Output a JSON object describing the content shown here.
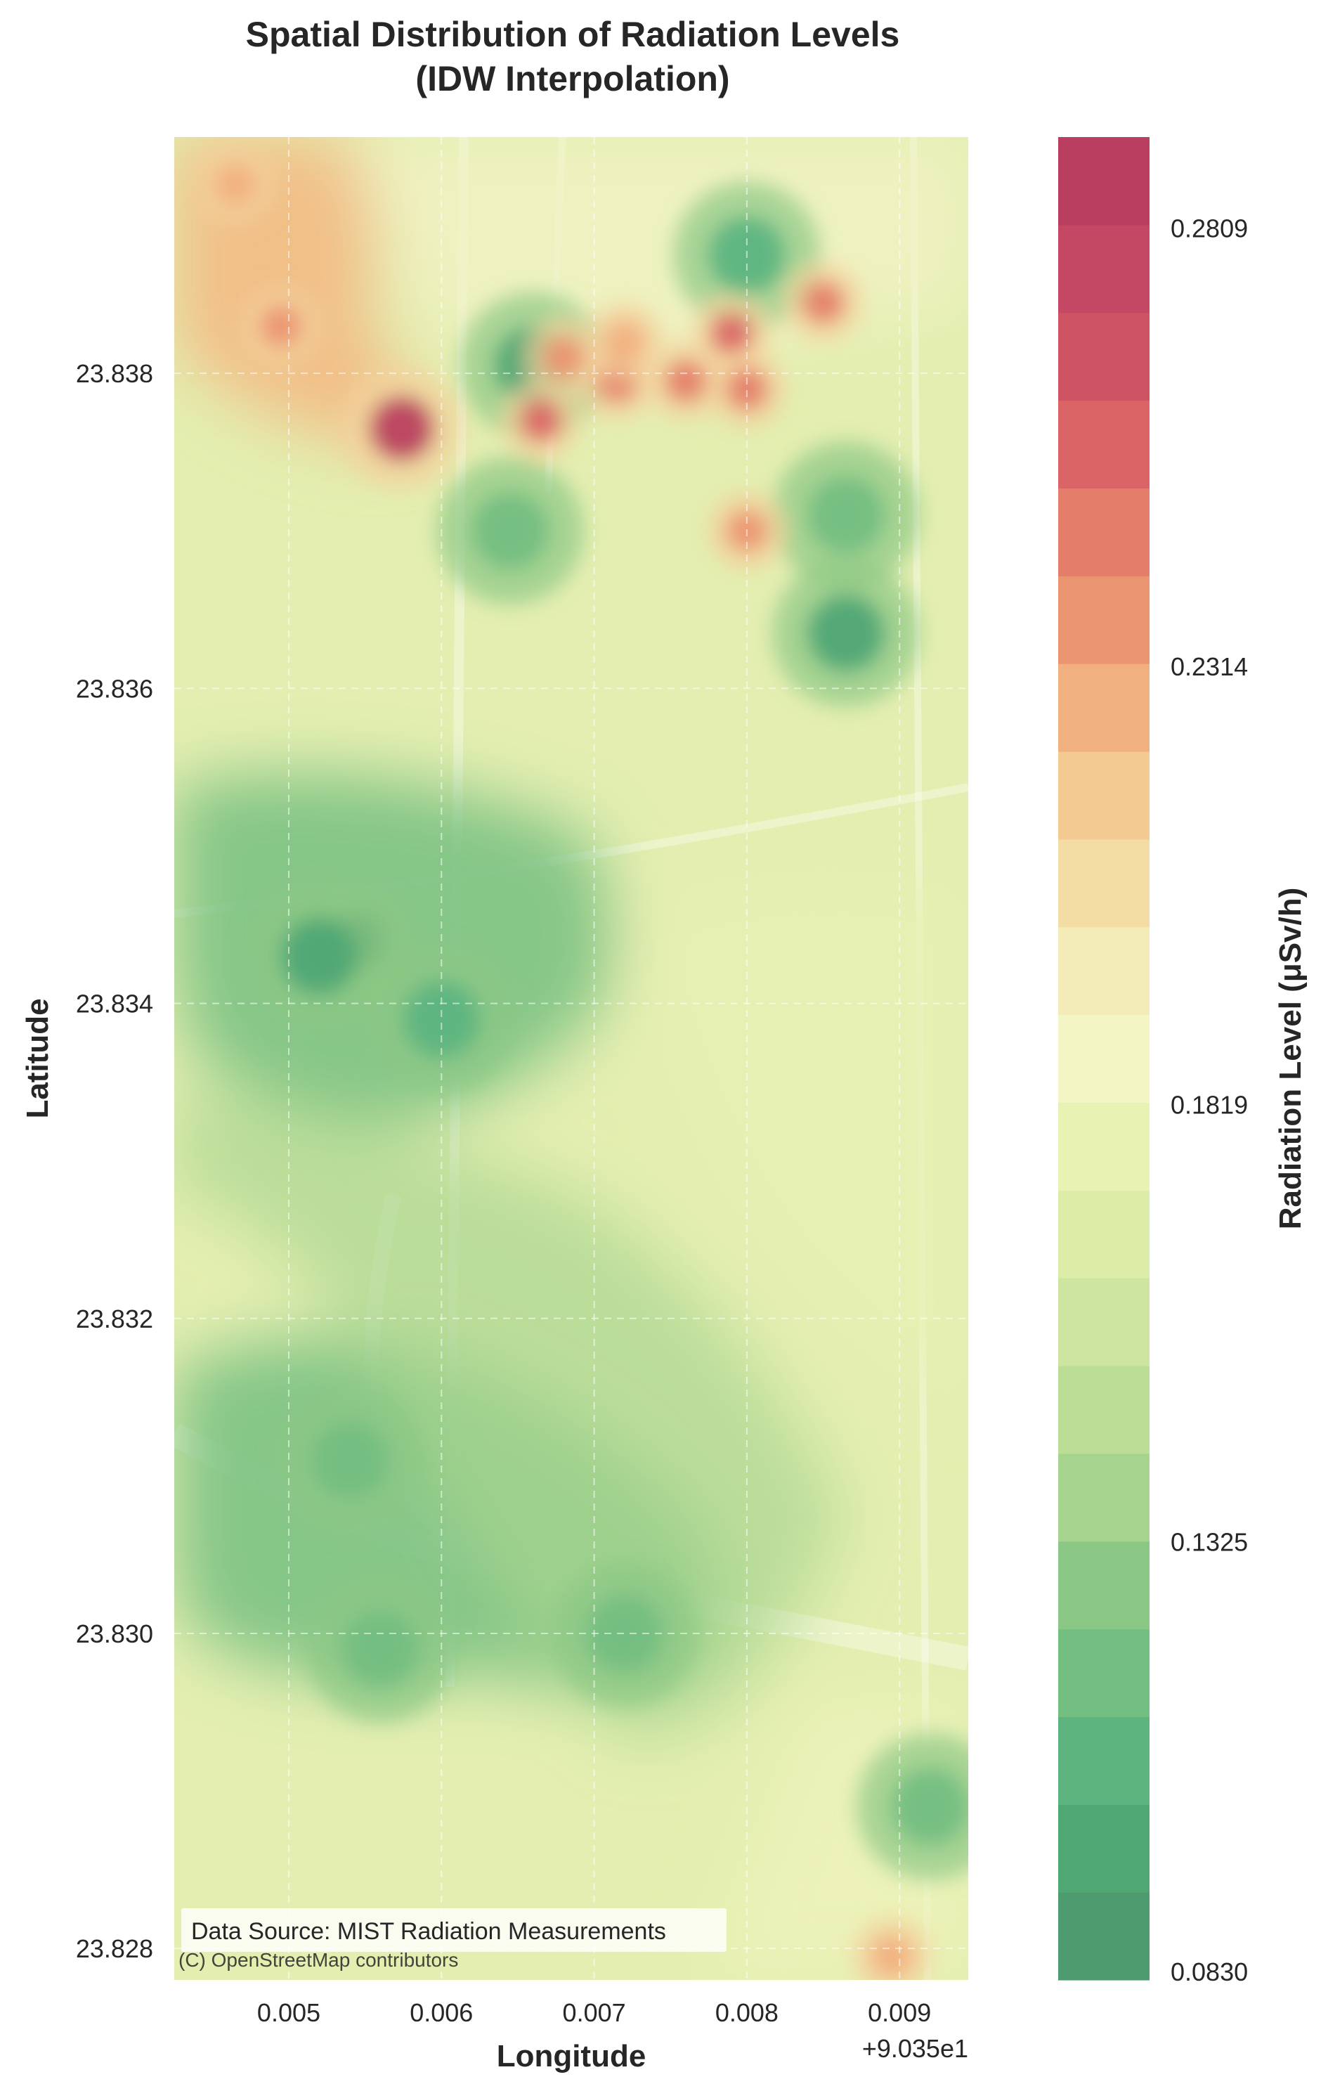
{
  "chart_data": {
    "type": "heatmap",
    "title": [
      "Spatial Distribution of Radiation Levels",
      "(IDW Interpolation)"
    ],
    "xlabel": "Longitude",
    "ylabel": "Latitude",
    "x_offset_label": "+9.035e1",
    "xlim": [
      0.00425,
      0.00945
    ],
    "ylim": [
      23.8278,
      23.8395
    ],
    "x_ticks": [
      0.005,
      0.006,
      0.007,
      0.008,
      0.009
    ],
    "x_tick_labels": [
      "0.005",
      "0.006",
      "0.007",
      "0.008",
      "0.009"
    ],
    "y_ticks": [
      23.828,
      23.83,
      23.832,
      23.834,
      23.836,
      23.838
    ],
    "y_tick_labels": [
      "23.828",
      "23.830",
      "23.832",
      "23.834",
      "23.836",
      "23.838"
    ],
    "grid": true,
    "colormap": "RdYlGn_r",
    "colorbar": {
      "label": "Radiation Level (μSv/h)",
      "min": 0.083,
      "max": 0.2912,
      "levels": 21,
      "ticks": [
        0.083,
        0.1325,
        0.1819,
        0.2314,
        0.2809
      ],
      "tick_labels": [
        "0.0830",
        "0.1325",
        "0.1819",
        "0.2314",
        "0.2809"
      ],
      "colors": [
        "#4f9b70",
        "#4fa774",
        "#5db47f",
        "#73be81",
        "#8cc885",
        "#a6d48e",
        "#bcdd95",
        "#cde5a0",
        "#dbeda7",
        "#e8f2b2",
        "#f3f5c4",
        "#f4ecb8",
        "#f4dca5",
        "#f3ca91",
        "#f1b07f",
        "#eb9470",
        "#e47d69",
        "#db6566",
        "#cf5463",
        "#c44763",
        "#b93e5f"
      ]
    },
    "hotspots": [
      {
        "lon": 0.00574,
        "lat": 23.83765,
        "value": 0.283
      },
      {
        "lon": 0.00665,
        "lat": 23.8377,
        "value": 0.255
      },
      {
        "lon": 0.0079,
        "lat": 23.83825,
        "value": 0.258
      },
      {
        "lon": 0.008,
        "lat": 23.8379,
        "value": 0.25
      },
      {
        "lon": 0.00715,
        "lat": 23.83795,
        "value": 0.245
      },
      {
        "lon": 0.0076,
        "lat": 23.83795,
        "value": 0.245
      },
      {
        "lon": 0.0085,
        "lat": 23.83845,
        "value": 0.245
      },
      {
        "lon": 0.008,
        "lat": 23.837,
        "value": 0.235
      },
      {
        "lon": 0.0072,
        "lat": 23.8382,
        "value": 0.225
      },
      {
        "lon": 0.0068,
        "lat": 23.8381,
        "value": 0.24
      },
      {
        "lon": 0.00495,
        "lat": 23.8383,
        "value": 0.232
      },
      {
        "lon": 0.00465,
        "lat": 23.8392,
        "value": 0.225
      },
      {
        "lon": 0.00895,
        "lat": 23.82795,
        "value": 0.23
      }
    ],
    "coldspots": [
      {
        "lon": 0.00545,
        "lat": 23.8344,
        "value": 0.083
      },
      {
        "lon": 0.0052,
        "lat": 23.8343,
        "value": 0.1
      },
      {
        "lon": 0.006,
        "lat": 23.8339,
        "value": 0.11
      },
      {
        "lon": 0.00865,
        "lat": 23.83635,
        "value": 0.095
      },
      {
        "lon": 0.0066,
        "lat": 23.83805,
        "value": 0.1
      },
      {
        "lon": 0.00645,
        "lat": 23.837,
        "value": 0.115
      },
      {
        "lon": 0.008,
        "lat": 23.83875,
        "value": 0.105
      },
      {
        "lon": 0.00865,
        "lat": 23.8371,
        "value": 0.115
      },
      {
        "lon": 0.0054,
        "lat": 23.8311,
        "value": 0.12
      },
      {
        "lon": 0.0072,
        "lat": 23.83,
        "value": 0.115
      },
      {
        "lon": 0.0056,
        "lat": 23.8299,
        "value": 0.12
      },
      {
        "lon": 0.0092,
        "lat": 23.8289,
        "value": 0.12
      }
    ],
    "annotations": {
      "data_source": "Data Source: MIST Radiation Measurements",
      "basemap_attribution": "(C) OpenStreetMap contributors"
    }
  }
}
